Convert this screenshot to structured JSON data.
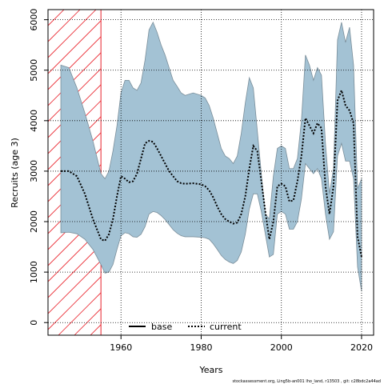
{
  "chart_data": {
    "type": "line",
    "title": "",
    "xlabel": "Years",
    "ylabel": "Recruits (age 3)",
    "xlim": [
      1941.8,
      2023
    ],
    "ylim": [
      -250,
      6200
    ],
    "x_ticks": [
      1960,
      1980,
      2000,
      2020
    ],
    "y_ticks": [
      0,
      1000,
      2000,
      3000,
      4000,
      5000,
      6000
    ],
    "grid": true,
    "legend_placement": "bottom-center",
    "hatched_region": {
      "x_start": 1941.8,
      "x_end": 1955,
      "color": "#e8202a"
    },
    "band_color": "#a3c2d4",
    "band_edge_color": "#7a8e9a",
    "series": [
      {
        "name": "base",
        "line_style": "solid",
        "color": "#000000",
        "values": []
      },
      {
        "name": "current",
        "line_style": "dotted",
        "color": "#000000",
        "x": [
          1945,
          1947,
          1949,
          1951,
          1953,
          1955,
          1956,
          1957,
          1958,
          1959,
          1960,
          1961,
          1962,
          1963,
          1964,
          1965,
          1966,
          1967,
          1968,
          1969,
          1970,
          1971,
          1972,
          1973,
          1974,
          1975,
          1976,
          1978,
          1980,
          1981,
          1982,
          1983,
          1984,
          1985,
          1986,
          1987,
          1988,
          1989,
          1990,
          1991,
          1992,
          1993,
          1994,
          1995,
          1996,
          1997,
          1998,
          1999,
          2000,
          2001,
          2002,
          2003,
          2004,
          2005,
          2006,
          2007,
          2008,
          2009,
          2010,
          2011,
          2012,
          2013,
          2014,
          2015,
          2016,
          2017,
          2018,
          2019,
          2020
        ],
        "values": [
          3000,
          3000,
          2900,
          2550,
          2050,
          1650,
          1620,
          1750,
          2050,
          2500,
          2900,
          2850,
          2780,
          2800,
          2950,
          3250,
          3550,
          3600,
          3580,
          3450,
          3300,
          3150,
          3000,
          2900,
          2800,
          2760,
          2750,
          2760,
          2740,
          2700,
          2620,
          2480,
          2300,
          2150,
          2050,
          2000,
          1960,
          1980,
          2150,
          2500,
          3050,
          3500,
          3400,
          2800,
          2200,
          1650,
          2000,
          2700,
          2750,
          2700,
          2400,
          2420,
          2800,
          3300,
          4050,
          3900,
          3750,
          3950,
          3850,
          2700,
          2150,
          2700,
          4400,
          4600,
          4300,
          4200,
          3950,
          1700,
          1300
        ]
      }
    ],
    "band": {
      "x": [
        1945,
        1947,
        1949,
        1951,
        1953,
        1955,
        1956,
        1957,
        1958,
        1959,
        1960,
        1961,
        1962,
        1963,
        1964,
        1965,
        1966,
        1967,
        1968,
        1969,
        1970,
        1971,
        1972,
        1973,
        1974,
        1975,
        1976,
        1978,
        1980,
        1981,
        1982,
        1983,
        1984,
        1985,
        1986,
        1987,
        1988,
        1989,
        1990,
        1991,
        1992,
        1993,
        1994,
        1995,
        1996,
        1997,
        1998,
        1999,
        2000,
        2001,
        2002,
        2003,
        2004,
        2005,
        2006,
        2007,
        2008,
        2009,
        2010,
        2011,
        2012,
        2013,
        2014,
        2015,
        2016,
        2017,
        2018,
        2019,
        2020
      ],
      "upper": [
        5100,
        5050,
        4650,
        4150,
        3600,
        2950,
        2850,
        3000,
        3400,
        3900,
        4550,
        4800,
        4800,
        4650,
        4600,
        4750,
        5200,
        5800,
        5950,
        5750,
        5500,
        5300,
        5050,
        4800,
        4680,
        4550,
        4500,
        4550,
        4500,
        4450,
        4300,
        4050,
        3750,
        3450,
        3300,
        3250,
        3150,
        3300,
        3750,
        4350,
        4850,
        4650,
        3800,
        2950,
        2150,
        2050,
        2900,
        3450,
        3500,
        3450,
        3050,
        3050,
        3250,
        4000,
        5300,
        5100,
        4800,
        5050,
        4900,
        3550,
        2550,
        3050,
        5600,
        5950,
        5550,
        5850,
        5100,
        2650,
        2850
      ],
      "lower": [
        1780,
        1790,
        1760,
        1650,
        1450,
        1150,
        980,
        1000,
        1150,
        1450,
        1720,
        1780,
        1760,
        1700,
        1690,
        1750,
        1900,
        2150,
        2200,
        2180,
        2120,
        2040,
        1940,
        1840,
        1770,
        1720,
        1700,
        1700,
        1690,
        1680,
        1650,
        1560,
        1450,
        1330,
        1250,
        1200,
        1170,
        1230,
        1400,
        1750,
        2250,
        2550,
        2550,
        2200,
        1750,
        1300,
        1350,
        2150,
        2200,
        2150,
        1850,
        1850,
        2000,
        2450,
        3150,
        3050,
        2950,
        3050,
        2850,
        2150,
        1650,
        1800,
        3300,
        3550,
        3200,
        3200,
        2850,
        1100,
        620
      ]
    }
  },
  "footer": {
    "text": "stockassessment.org, Ling5b-an001  lho_land, r13503 ,  git:  c28bdc2a44ad"
  }
}
